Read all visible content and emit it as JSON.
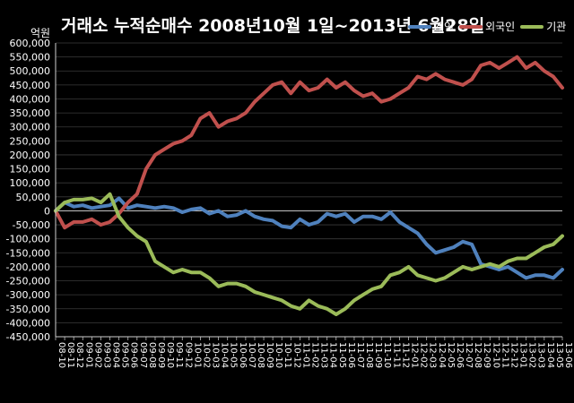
{
  "header": {
    "title": "거래소 누적순매수 2008년10월 1일~2013년 6월28일",
    "unit": "억원"
  },
  "chart_data": {
    "type": "line",
    "title": "거래소 누적순매수 2008년10월 1일~2013년 6월28일",
    "ylabel": "억원",
    "xlabel": "",
    "ylim": [
      -450000,
      600000
    ],
    "ytick_step": 50000,
    "grid": true,
    "legend_position": "top-right",
    "x_ticks": [
      "08-10",
      "08-11",
      "08-12",
      "09-01",
      "09-02",
      "09-03",
      "09-04",
      "09-05",
      "09-06",
      "09-07",
      "09-08",
      "09-09",
      "09-10",
      "09-11",
      "09-12",
      "10-01",
      "10-02",
      "10-03",
      "10-04",
      "10-05",
      "10-06",
      "10-07",
      "10-08",
      "10-09",
      "10-10",
      "10-11",
      "10-12",
      "11-01",
      "11-02",
      "11-03",
      "11-04",
      "11-05",
      "11-06",
      "11-07",
      "11-08",
      "11-09",
      "11-10",
      "11-11",
      "11-12",
      "12-01",
      "12-02",
      "12-03",
      "12-04",
      "12-05",
      "12-06",
      "12-07",
      "12-08",
      "12-09",
      "12-10",
      "12-11",
      "12-12",
      "13-01",
      "13-02",
      "13-03",
      "13-04",
      "13-05",
      "13-06"
    ],
    "x": [
      "2008-10",
      "2008-11",
      "2008-12",
      "2009-01",
      "2009-02",
      "2009-03",
      "2009-04",
      "2009-05",
      "2009-06",
      "2009-07",
      "2009-08",
      "2009-09",
      "2009-10",
      "2009-11",
      "2009-12",
      "2010-01",
      "2010-02",
      "2010-03",
      "2010-04",
      "2010-05",
      "2010-06",
      "2010-07",
      "2010-08",
      "2010-09",
      "2010-10",
      "2010-11",
      "2010-12",
      "2011-01",
      "2011-02",
      "2011-03",
      "2011-04",
      "2011-05",
      "2011-06",
      "2011-07",
      "2011-08",
      "2011-09",
      "2011-10",
      "2011-11",
      "2011-12",
      "2012-01",
      "2012-02",
      "2012-03",
      "2012-04",
      "2012-05",
      "2012-06",
      "2012-07",
      "2012-08",
      "2012-09",
      "2012-10",
      "2012-11",
      "2012-12",
      "2013-01",
      "2013-02",
      "2013-03",
      "2013-04",
      "2013-05",
      "2013-06"
    ],
    "series": [
      {
        "name": "개인",
        "color": "#4f81bd",
        "values": [
          0,
          30000,
          15000,
          20000,
          10000,
          15000,
          20000,
          45000,
          10000,
          20000,
          15000,
          10000,
          15000,
          10000,
          -5000,
          5000,
          10000,
          -10000,
          0,
          -20000,
          -15000,
          0,
          -20000,
          -30000,
          -35000,
          -55000,
          -60000,
          -30000,
          -50000,
          -40000,
          -10000,
          -20000,
          -10000,
          -40000,
          -20000,
          -20000,
          -30000,
          -5000,
          -40000,
          -60000,
          -80000,
          -120000,
          -150000,
          -140000,
          -130000,
          -110000,
          -120000,
          -190000,
          -200000,
          -210000,
          -200000,
          -220000,
          -240000,
          -230000,
          -230000,
          -240000,
          -210000
        ]
      },
      {
        "name": "외국인",
        "color": "#c0504d",
        "values": [
          0,
          -60000,
          -40000,
          -40000,
          -30000,
          -50000,
          -40000,
          -10000,
          30000,
          60000,
          150000,
          200000,
          220000,
          240000,
          250000,
          270000,
          330000,
          350000,
          300000,
          320000,
          330000,
          350000,
          390000,
          420000,
          450000,
          460000,
          420000,
          460000,
          430000,
          440000,
          470000,
          440000,
          460000,
          430000,
          410000,
          420000,
          390000,
          400000,
          420000,
          440000,
          480000,
          470000,
          490000,
          470000,
          460000,
          450000,
          470000,
          520000,
          530000,
          510000,
          530000,
          550000,
          510000,
          530000,
          500000,
          480000,
          440000
        ]
      },
      {
        "name": "기관",
        "color": "#9bbb59",
        "values": [
          0,
          30000,
          40000,
          40000,
          45000,
          30000,
          60000,
          -20000,
          -60000,
          -90000,
          -110000,
          -180000,
          -200000,
          -220000,
          -210000,
          -220000,
          -220000,
          -240000,
          -270000,
          -260000,
          -260000,
          -270000,
          -290000,
          -300000,
          -310000,
          -320000,
          -340000,
          -350000,
          -320000,
          -340000,
          -350000,
          -370000,
          -350000,
          -320000,
          -300000,
          -280000,
          -270000,
          -230000,
          -220000,
          -200000,
          -230000,
          -240000,
          -250000,
          -240000,
          -220000,
          -200000,
          -210000,
          -200000,
          -190000,
          -200000,
          -180000,
          -170000,
          -170000,
          -150000,
          -130000,
          -120000,
          -90000
        ]
      }
    ]
  }
}
